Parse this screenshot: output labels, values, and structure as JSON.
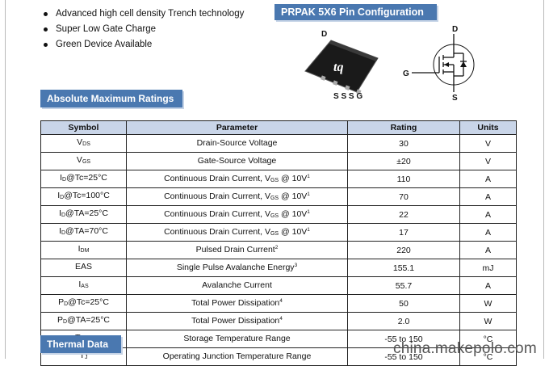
{
  "features": [
    {
      "text": "Advanced high cell density Trench technology"
    },
    {
      "text": "Super Low Gate Charge"
    },
    {
      "text": "Green Device Available"
    }
  ],
  "pin_config": {
    "title": "PRPAK 5X6 Pin Configuration",
    "package_drain_label": "D",
    "package_bottom_pins": "S S S G",
    "symbol_labels": {
      "drain": "D",
      "gate": "G",
      "source": "S"
    }
  },
  "abs_max": {
    "title": "Absolute Maximum Ratings",
    "headers": [
      "Symbol",
      "Parameter",
      "Rating",
      "Units"
    ],
    "rows": [
      {
        "symbol": {
          "base": "V",
          "sub": "DS",
          "suffix": ""
        },
        "parameter": {
          "text": "Drain-Source Voltage",
          "vgs": "",
          "tail": "",
          "note": ""
        },
        "rating": "30",
        "unit": "V"
      },
      {
        "symbol": {
          "base": "V",
          "sub": "GS",
          "suffix": ""
        },
        "parameter": {
          "text": "Gate-Source Voltage",
          "vgs": "",
          "tail": "",
          "note": ""
        },
        "rating": "±20",
        "unit": "V"
      },
      {
        "symbol": {
          "base": "I",
          "sub": "D",
          "suffix": "@Tc=25°C"
        },
        "parameter": {
          "text": "Continuous Drain Current, V",
          "vgs": "GS",
          "tail": " @ 10V",
          "note": "1"
        },
        "rating": "110",
        "unit": "A"
      },
      {
        "symbol": {
          "base": "I",
          "sub": "D",
          "suffix": "@Tc=100°C"
        },
        "parameter": {
          "text": "Continuous Drain Current, V",
          "vgs": "GS",
          "tail": " @ 10V",
          "note": "1"
        },
        "rating": "70",
        "unit": "A"
      },
      {
        "symbol": {
          "base": "I",
          "sub": "D",
          "suffix": "@TA=25°C"
        },
        "parameter": {
          "text": "Continuous Drain Current, V",
          "vgs": "GS",
          "tail": " @ 10V",
          "note": "1"
        },
        "rating": "22",
        "unit": "A"
      },
      {
        "symbol": {
          "base": "I",
          "sub": "D",
          "suffix": "@TA=70°C"
        },
        "parameter": {
          "text": "Continuous Drain Current, V",
          "vgs": "GS",
          "tail": " @ 10V",
          "note": "1"
        },
        "rating": "17",
        "unit": "A"
      },
      {
        "symbol": {
          "base": "I",
          "sub": "DM",
          "suffix": ""
        },
        "parameter": {
          "text": "Pulsed Drain Current",
          "vgs": "",
          "tail": "",
          "note": "2"
        },
        "rating": "220",
        "unit": "A"
      },
      {
        "symbol": {
          "base": "EAS",
          "sub": "",
          "suffix": ""
        },
        "parameter": {
          "text": "Single Pulse Avalanche Energy",
          "vgs": "",
          "tail": "",
          "note": "3"
        },
        "rating": "155.1",
        "unit": "mJ"
      },
      {
        "symbol": {
          "base": "I",
          "sub": "AS",
          "suffix": ""
        },
        "parameter": {
          "text": "Avalanche Current",
          "vgs": "",
          "tail": "",
          "note": ""
        },
        "rating": "55.7",
        "unit": "A"
      },
      {
        "symbol": {
          "base": "P",
          "sub": "D",
          "suffix": "@Tc=25°C"
        },
        "parameter": {
          "text": "Total Power Dissipation",
          "vgs": "",
          "tail": "",
          "note": "4"
        },
        "rating": "50",
        "unit": "W"
      },
      {
        "symbol": {
          "base": "P",
          "sub": "D",
          "suffix": "@TA=25°C"
        },
        "parameter": {
          "text": "Total Power Dissipation",
          "vgs": "",
          "tail": "",
          "note": "4"
        },
        "rating": "2.0",
        "unit": "W"
      },
      {
        "symbol": {
          "base": "T",
          "sub": "STG",
          "suffix": ""
        },
        "parameter": {
          "text": "Storage Temperature Range",
          "vgs": "",
          "tail": "",
          "note": ""
        },
        "rating": "-55 to 150",
        "unit": "°C"
      },
      {
        "symbol": {
          "base": "T",
          "sub": "J",
          "suffix": ""
        },
        "parameter": {
          "text": "Operating Junction Temperature Range",
          "vgs": "",
          "tail": "",
          "note": ""
        },
        "rating": "-55 to 150",
        "unit": "°C"
      }
    ]
  },
  "thermal": {
    "title": "Thermal Data"
  },
  "watermark": "china.makepolo.com",
  "colors": {
    "section_header_bg": "#4a78b0",
    "table_header_bg": "#c9d5e8"
  }
}
